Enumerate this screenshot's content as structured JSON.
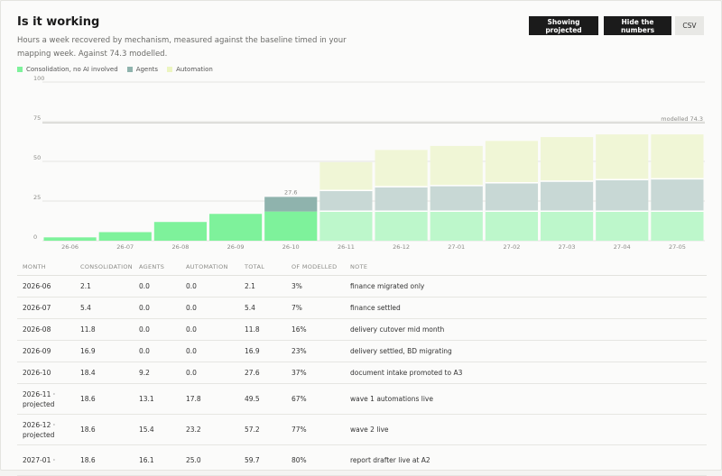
{
  "header": {
    "title": "Is it working",
    "subtitle": "Hours a week recovered by mechanism, measured against the baseline timed in your mapping week. Against 74.3 modelled."
  },
  "toolbar": {
    "showing_projected_label": "Showing projected",
    "hide_numbers_label": "Hide the numbers",
    "csv_label": "CSV"
  },
  "colors": {
    "consolidation": "#7ef29b",
    "agents": "#8fb3ad",
    "automation": "#ecf5c0",
    "projected_consolidation": "#bdf7cb",
    "projected_agents": "#c8d8d5",
    "projected_automation": "#f0f6d6"
  },
  "chart_data": {
    "type": "bar",
    "stacked": true,
    "categories": [
      "26-06",
      "26-07",
      "26-08",
      "26-09",
      "26-10",
      "26-11",
      "26-12",
      "27-01",
      "27-02",
      "27-03",
      "27-04",
      "27-05"
    ],
    "series": [
      {
        "name": "Consolidation, no AI involved",
        "values": [
          2.1,
          5.4,
          11.8,
          16.9,
          18.4,
          18.6,
          18.6,
          18.6,
          18.6,
          18.6,
          18.6,
          18.6
        ]
      },
      {
        "name": "Agents",
        "values": [
          0.0,
          0.0,
          0.0,
          0.0,
          9.2,
          13.1,
          15.4,
          16.1,
          17.9,
          18.9,
          19.9,
          20.4
        ]
      },
      {
        "name": "Automation",
        "values": [
          0.0,
          0.0,
          0.0,
          0.0,
          0.0,
          17.8,
          23.2,
          25.0,
          26.4,
          27.8,
          28.5,
          28.0
        ]
      }
    ],
    "projected_from_index": 5,
    "ylim": [
      0,
      100
    ],
    "yticks": [
      0,
      25,
      50,
      75,
      100
    ],
    "reference_line": {
      "value": 74.3,
      "label": "modelled 74.3"
    },
    "annotation": {
      "index": 4,
      "label": "27.6"
    },
    "legend_placement": "top-left"
  },
  "table": {
    "columns": [
      "MONTH",
      "CONSOLIDATION",
      "AGENTS",
      "AUTOMATION",
      "TOTAL",
      "OF MODELLED",
      "NOTE"
    ],
    "rows": [
      {
        "month": "2026-06",
        "consolidation": "2.1",
        "agents": "0.0",
        "automation": "0.0",
        "total": "2.1",
        "of_modelled": "3%",
        "note": "finance migrated only"
      },
      {
        "month": "2026-07",
        "consolidation": "5.4",
        "agents": "0.0",
        "automation": "0.0",
        "total": "5.4",
        "of_modelled": "7%",
        "note": "finance settled"
      },
      {
        "month": "2026-08",
        "consolidation": "11.8",
        "agents": "0.0",
        "automation": "0.0",
        "total": "11.8",
        "of_modelled": "16%",
        "note": "delivery cutover mid month"
      },
      {
        "month": "2026-09",
        "consolidation": "16.9",
        "agents": "0.0",
        "automation": "0.0",
        "total": "16.9",
        "of_modelled": "23%",
        "note": "delivery settled, BD migrating"
      },
      {
        "month": "2026-10",
        "consolidation": "18.4",
        "agents": "9.2",
        "automation": "0.0",
        "total": "27.6",
        "of_modelled": "37%",
        "note": "document intake promoted to A3"
      },
      {
        "month": "2026-11 · projected",
        "consolidation": "18.6",
        "agents": "13.1",
        "automation": "17.8",
        "total": "49.5",
        "of_modelled": "67%",
        "note": "wave 1 automations live"
      },
      {
        "month": "2026-12 · projected",
        "consolidation": "18.6",
        "agents": "15.4",
        "automation": "23.2",
        "total": "57.2",
        "of_modelled": "77%",
        "note": "wave 2 live"
      },
      {
        "month": "2027-01 ·",
        "consolidation": "18.6",
        "agents": "16.1",
        "automation": "25.0",
        "total": "59.7",
        "of_modelled": "80%",
        "note": "report drafter live at A2"
      }
    ]
  }
}
